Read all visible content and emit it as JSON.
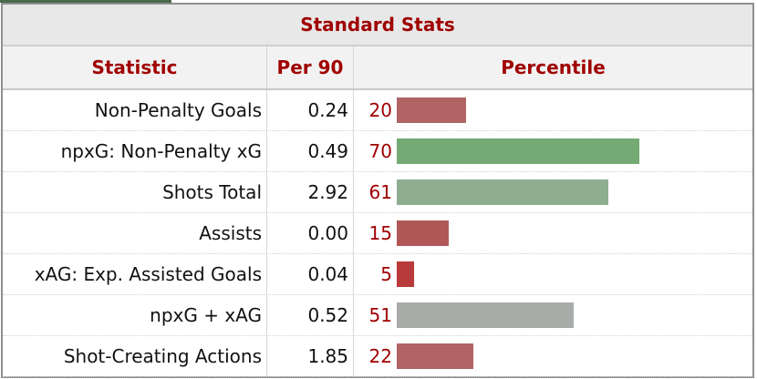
{
  "table": {
    "caption": "Standard Stats",
    "headers": {
      "statistic": "Statistic",
      "per90": "Per 90",
      "percentile": "Percentile"
    },
    "rows": [
      {
        "statistic": "Non-Penalty Goals",
        "per90": "0.24",
        "percentile": "20",
        "bar_color": "#b06464"
      },
      {
        "statistic": "npxG: Non-Penalty xG",
        "per90": "0.49",
        "percentile": "70",
        "bar_color": "#75aa75"
      },
      {
        "statistic": "Shots Total",
        "per90": "2.92",
        "percentile": "61",
        "bar_color": "#8fae8f"
      },
      {
        "statistic": "Assists",
        "per90": "0.00",
        "percentile": "15",
        "bar_color": "#b05858"
      },
      {
        "statistic": "xAG: Exp. Assisted Goals",
        "per90": "0.04",
        "percentile": "5",
        "bar_color": "#b83a3a"
      },
      {
        "statistic": "npxG + xAG",
        "per90": "0.52",
        "percentile": "51",
        "bar_color": "#a8aca8"
      },
      {
        "statistic": "Shot-Creating Actions",
        "per90": "1.85",
        "percentile": "22",
        "bar_color": "#b06464"
      }
    ]
  }
}
